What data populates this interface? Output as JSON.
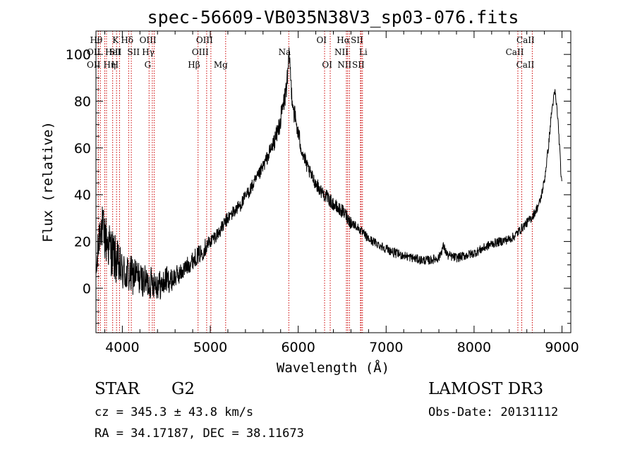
{
  "chart_data": {
    "type": "line",
    "title": "spec-56609-VB035N38V3_sp03-076.fits",
    "xlabel": "Wavelength (Å)",
    "ylabel": "Flux (relative)",
    "xlim": [
      3700,
      9100
    ],
    "ylim": [
      -19,
      110
    ],
    "x_ticks": [
      4000,
      5000,
      6000,
      7000,
      8000,
      9000
    ],
    "y_ticks": [
      0,
      20,
      40,
      60,
      80,
      100
    ],
    "grid": false,
    "series": [
      {
        "name": "spectrum",
        "x": [
          3700,
          3750,
          3800,
          3850,
          3900,
          3950,
          4000,
          4050,
          4100,
          4150,
          4200,
          4250,
          4300,
          4350,
          4400,
          4450,
          4500,
          4550,
          4600,
          4650,
          4700,
          4750,
          4800,
          4850,
          4900,
          4950,
          5000,
          5050,
          5100,
          5150,
          5200,
          5250,
          5300,
          5350,
          5400,
          5450,
          5500,
          5550,
          5600,
          5650,
          5700,
          5750,
          5800,
          5850,
          5880,
          5900,
          5920,
          5950,
          6000,
          6050,
          6100,
          6150,
          6200,
          6250,
          6300,
          6350,
          6400,
          6450,
          6500,
          6550,
          6600,
          6650,
          6700,
          6750,
          6800,
          6850,
          6900,
          6950,
          7000,
          7100,
          7200,
          7300,
          7400,
          7500,
          7600,
          7650,
          7700,
          7800,
          7900,
          8000,
          8100,
          8200,
          8300,
          8400,
          8450,
          8500,
          8550,
          8600,
          8650,
          8700,
          8750,
          8800,
          8850,
          8880,
          8900,
          8920,
          8950,
          8970,
          8990,
          9000
        ],
        "y": [
          5,
          28,
          22,
          18,
          14,
          10,
          7,
          6,
          5,
          6,
          4,
          3,
          2,
          3,
          2,
          1,
          4,
          3,
          5,
          6,
          8,
          10,
          12,
          14,
          15,
          18,
          20,
          22,
          24,
          27,
          30,
          32,
          34,
          36,
          39,
          42,
          45,
          48,
          52,
          56,
          60,
          65,
          72,
          82,
          90,
          100,
          86,
          76,
          66,
          58,
          52,
          48,
          45,
          42,
          40,
          38,
          36,
          34,
          33,
          31,
          28,
          27,
          25,
          23,
          21,
          20,
          19,
          18,
          17,
          15,
          14,
          13,
          12,
          12,
          13,
          18,
          14,
          13,
          14,
          15,
          17,
          19,
          20,
          21,
          22,
          24,
          26,
          28,
          30,
          33,
          37,
          46,
          62,
          75,
          80,
          84,
          74,
          62,
          48,
          43
        ],
        "noise": [
          8,
          10,
          11,
          11,
          11,
          10,
          9,
          9,
          9,
          8,
          7,
          7,
          7,
          7,
          7,
          6,
          6,
          5,
          5,
          4,
          4,
          4,
          4,
          4,
          4,
          4,
          3,
          3,
          3,
          3,
          3,
          3,
          3,
          3,
          3,
          3,
          3,
          3,
          3,
          3,
          4,
          4,
          5,
          5,
          5,
          5,
          5,
          5,
          4,
          4,
          3,
          3,
          3,
          3,
          3,
          3,
          3,
          3,
          3,
          3,
          3,
          2,
          2,
          2,
          2,
          2,
          2,
          2,
          2,
          2,
          2,
          2,
          2,
          2,
          2,
          2,
          2,
          2,
          2,
          2,
          2,
          2,
          2,
          2,
          2,
          2,
          2,
          2,
          2,
          2,
          2,
          2,
          2,
          2,
          2,
          2,
          2,
          2,
          2,
          2
        ]
      }
    ],
    "line_markers": [
      {
        "wave": 3750,
        "label": "Hθ",
        "row": 0,
        "ha": "end"
      },
      {
        "wave": 3800,
        "label": "Hη",
        "row": 2,
        "ha": "start"
      },
      {
        "wave": 3820,
        "label": "HeI",
        "row": 1,
        "ha": "start"
      },
      {
        "wave": 3727,
        "label": "OII",
        "row": 1,
        "ha": "end"
      },
      {
        "wave": 3727,
        "label": "OII",
        "row": 2,
        "ha": "end"
      },
      {
        "wave": 3890,
        "label": "H",
        "row": 2,
        "ha": "start"
      },
      {
        "wave": 3934,
        "label": "K",
        "row": 0,
        "ha": "end"
      },
      {
        "wave": 3968,
        "label": "SII",
        "row": 1,
        "ha": "end"
      },
      {
        "wave": 4102,
        "label": "Hδ",
        "row": 0,
        "ha": "end"
      },
      {
        "wave": 4072,
        "label": "SII",
        "row": 1,
        "ha": "start"
      },
      {
        "wave": 4363,
        "label": "OIII",
        "row": 0,
        "ha": "end"
      },
      {
        "wave": 4341,
        "label": "Hγ",
        "row": 1,
        "ha": "end"
      },
      {
        "wave": 4304,
        "label": "G",
        "row": 2,
        "ha": "end"
      },
      {
        "wave": 4861,
        "label": "Hβ",
        "row": 2,
        "ha": "end"
      },
      {
        "wave": 4959,
        "label": "OIII",
        "row": 1,
        "ha": "end"
      },
      {
        "wave": 5007,
        "label": "OIII",
        "row": 0,
        "ha": "end"
      },
      {
        "wave": 5175,
        "label": "Mg",
        "row": 2,
        "ha": "end"
      },
      {
        "wave": 5893,
        "label": "Na",
        "row": 1,
        "ha": "end"
      },
      {
        "wave": 6300,
        "label": "OI",
        "row": 0,
        "ha": "end"
      },
      {
        "wave": 6364,
        "label": "OI",
        "row": 2,
        "ha": "end"
      },
      {
        "wave": 6548,
        "label": "NII",
        "row": 1,
        "ha": "end"
      },
      {
        "wave": 6563,
        "label": "Hα",
        "row": 0,
        "ha": "end"
      },
      {
        "wave": 6583,
        "label": "NII",
        "row": 2,
        "ha": "end"
      },
      {
        "wave": 6708,
        "label": "Li",
        "row": 1,
        "ha": "start"
      },
      {
        "wave": 6716,
        "label": "SII",
        "row": 0,
        "ha": "end"
      },
      {
        "wave": 6731,
        "label": "SII",
        "row": 2,
        "ha": "end"
      },
      {
        "wave": 8498,
        "label": "CaII",
        "row": 0,
        "ha": "start"
      },
      {
        "wave": 8542,
        "label": "CaII",
        "row": 1,
        "ha": "end"
      },
      {
        "wave": 8662,
        "label": "CaII",
        "row": 2,
        "ha": "end"
      }
    ],
    "marker_color": "#cc0000"
  },
  "info": {
    "class": "STAR",
    "subclass": "G2",
    "survey": "LAMOST DR3",
    "cz": "cz = 345.3 ± 43.8 km/s",
    "obs_date": "Obs-Date: 20131112",
    "radec": "RA =  34.17187, DEC =  38.11673"
  }
}
